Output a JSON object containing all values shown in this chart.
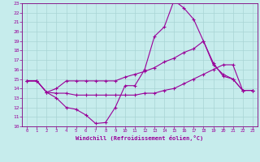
{
  "xlabel": "Windchill (Refroidissement éolien,°C)",
  "xlim": [
    -0.5,
    23.5
  ],
  "ylim": [
    10,
    23
  ],
  "xticks": [
    0,
    1,
    2,
    3,
    4,
    5,
    6,
    7,
    8,
    9,
    10,
    11,
    12,
    13,
    14,
    15,
    16,
    17,
    18,
    19,
    20,
    21,
    22,
    23
  ],
  "yticks": [
    10,
    11,
    12,
    13,
    14,
    15,
    16,
    17,
    18,
    19,
    20,
    21,
    22,
    23
  ],
  "bg_color": "#c6ecec",
  "grid_color": "#a8d4d4",
  "line_color": "#990099",
  "spine_color": "#800080",
  "line1_x": [
    0,
    1,
    2,
    3,
    4,
    5,
    6,
    7,
    8,
    9,
    10,
    11,
    12,
    13,
    14,
    15,
    16,
    17,
    18,
    19,
    20,
    21,
    22,
    23
  ],
  "line1_y": [
    14.8,
    14.8,
    13.6,
    13.0,
    12.0,
    11.8,
    11.2,
    10.3,
    10.4,
    12.0,
    14.3,
    14.3,
    16.0,
    19.5,
    20.5,
    23.3,
    22.5,
    21.3,
    19.0,
    16.7,
    15.3,
    15.0,
    13.8,
    13.8
  ],
  "line2_x": [
    0,
    1,
    2,
    3,
    4,
    5,
    6,
    7,
    8,
    9,
    10,
    11,
    12,
    13,
    14,
    15,
    16,
    17,
    18,
    19,
    20,
    21,
    22,
    23
  ],
  "line2_y": [
    14.8,
    14.8,
    13.6,
    14.0,
    14.8,
    14.8,
    14.8,
    14.8,
    14.8,
    14.8,
    15.2,
    15.5,
    15.8,
    16.2,
    16.8,
    17.2,
    17.8,
    18.2,
    19.0,
    16.5,
    15.5,
    15.0,
    13.8,
    13.8
  ],
  "line3_x": [
    0,
    1,
    2,
    3,
    4,
    5,
    6,
    7,
    8,
    9,
    10,
    11,
    12,
    13,
    14,
    15,
    16,
    17,
    18,
    19,
    20,
    21,
    22,
    23
  ],
  "line3_y": [
    14.8,
    14.8,
    13.6,
    13.5,
    13.5,
    13.3,
    13.3,
    13.3,
    13.3,
    13.3,
    13.3,
    13.3,
    13.5,
    13.5,
    13.8,
    14.0,
    14.5,
    15.0,
    15.5,
    16.0,
    16.5,
    16.5,
    13.8,
    13.8
  ]
}
